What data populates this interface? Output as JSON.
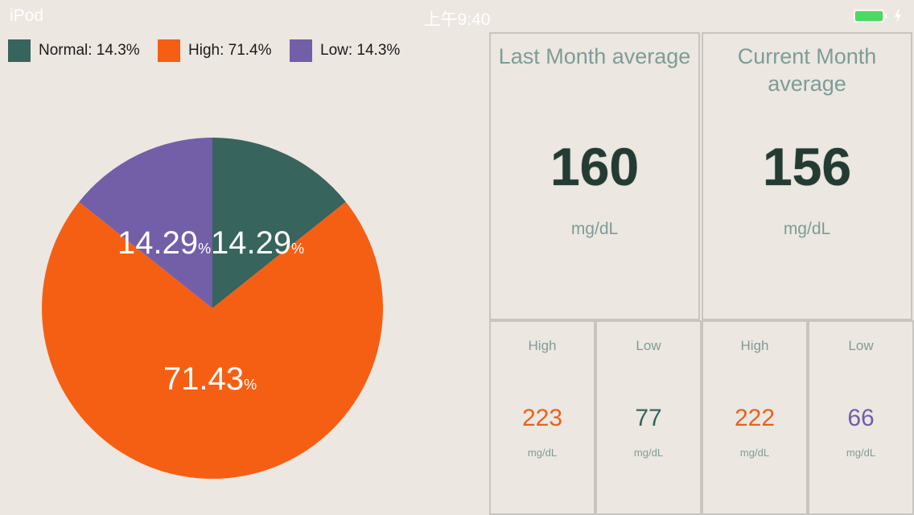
{
  "status_bar": {
    "device": "iPod",
    "time": "上午9:40"
  },
  "legend": [
    {
      "label": "Normal: 14.3%",
      "color": "#37645C"
    },
    {
      "label": "High: 71.4%",
      "color": "#F55F14"
    },
    {
      "label": "Low: 14.3%",
      "color": "#735EA8"
    }
  ],
  "chart_data": {
    "type": "pie",
    "slices": [
      {
        "category": "Normal",
        "value": 14.29,
        "label": "14.29",
        "color": "#37645C"
      },
      {
        "category": "High",
        "value": 71.43,
        "label": "71.43",
        "color": "#F55F14"
      },
      {
        "category": "Low",
        "value": 14.29,
        "label": "14.29",
        "color": "#735EA8"
      }
    ],
    "percent_symbol": "%"
  },
  "summary": {
    "last_month": {
      "title": "Last Month average",
      "value": "160",
      "unit": "mg/dL",
      "high": {
        "label": "High",
        "value": "223",
        "unit": "mg/dL",
        "color": "#E8621E"
      },
      "low": {
        "label": "Low",
        "value": "77",
        "unit": "mg/dL",
        "color": "#37645C"
      }
    },
    "current_month": {
      "title": "Current Month average",
      "value": "156",
      "unit": "mg/dL",
      "high": {
        "label": "High",
        "value": "222",
        "unit": "mg/dL",
        "color": "#E8621E"
      },
      "low": {
        "label": "Low",
        "value": "66",
        "unit": "mg/dL",
        "color": "#735EA8"
      }
    }
  }
}
